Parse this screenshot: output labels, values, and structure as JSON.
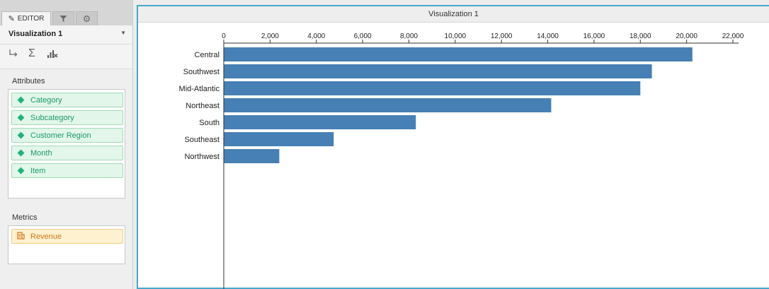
{
  "editor": {
    "tabs": [
      {
        "label": "EDITOR",
        "icon": "pencil-icon"
      },
      {
        "label": "",
        "icon": "filter-icon"
      },
      {
        "label": "",
        "icon": "gear-icon"
      }
    ],
    "viz_title": "Visualization 1",
    "tools": [
      "pivot-icon",
      "sigma-icon",
      "chart-clear-icon"
    ],
    "attributes_label": "Attributes",
    "attributes": [
      "Category",
      "Subcategory",
      "Customer Region",
      "Month",
      "Item"
    ],
    "metrics_label": "Metrics",
    "metrics": [
      "Revenue"
    ]
  },
  "viz": {
    "title": "Visualization 1"
  },
  "colors": {
    "bar": "#4680b4",
    "accent_border": "#46a9cc",
    "attribute_green": "#1d9a6c",
    "metric_orange": "#d2781c"
  },
  "chart_data": {
    "type": "bar",
    "orientation": "horizontal",
    "title": "",
    "xlabel": "",
    "ylabel": "",
    "categories": [
      "Central",
      "Southwest",
      "Mid-Atlantic",
      "Northeast",
      "South",
      "Southeast",
      "Northwest"
    ],
    "values": [
      20250,
      18500,
      18000,
      14150,
      8300,
      4750,
      2400
    ],
    "xlim": [
      0,
      22000
    ],
    "xticks": [
      0,
      2000,
      4000,
      6000,
      8000,
      10000,
      12000,
      14000,
      16000,
      18000,
      20000,
      22000
    ],
    "xtick_labels": [
      "0",
      "2,000",
      "4,000",
      "6,000",
      "8,000",
      "10,000",
      "12,000",
      "14,000",
      "16,000",
      "18,000",
      "20,000",
      "22,000"
    ],
    "axis_position": "top",
    "grid": false,
    "legend": "none"
  }
}
